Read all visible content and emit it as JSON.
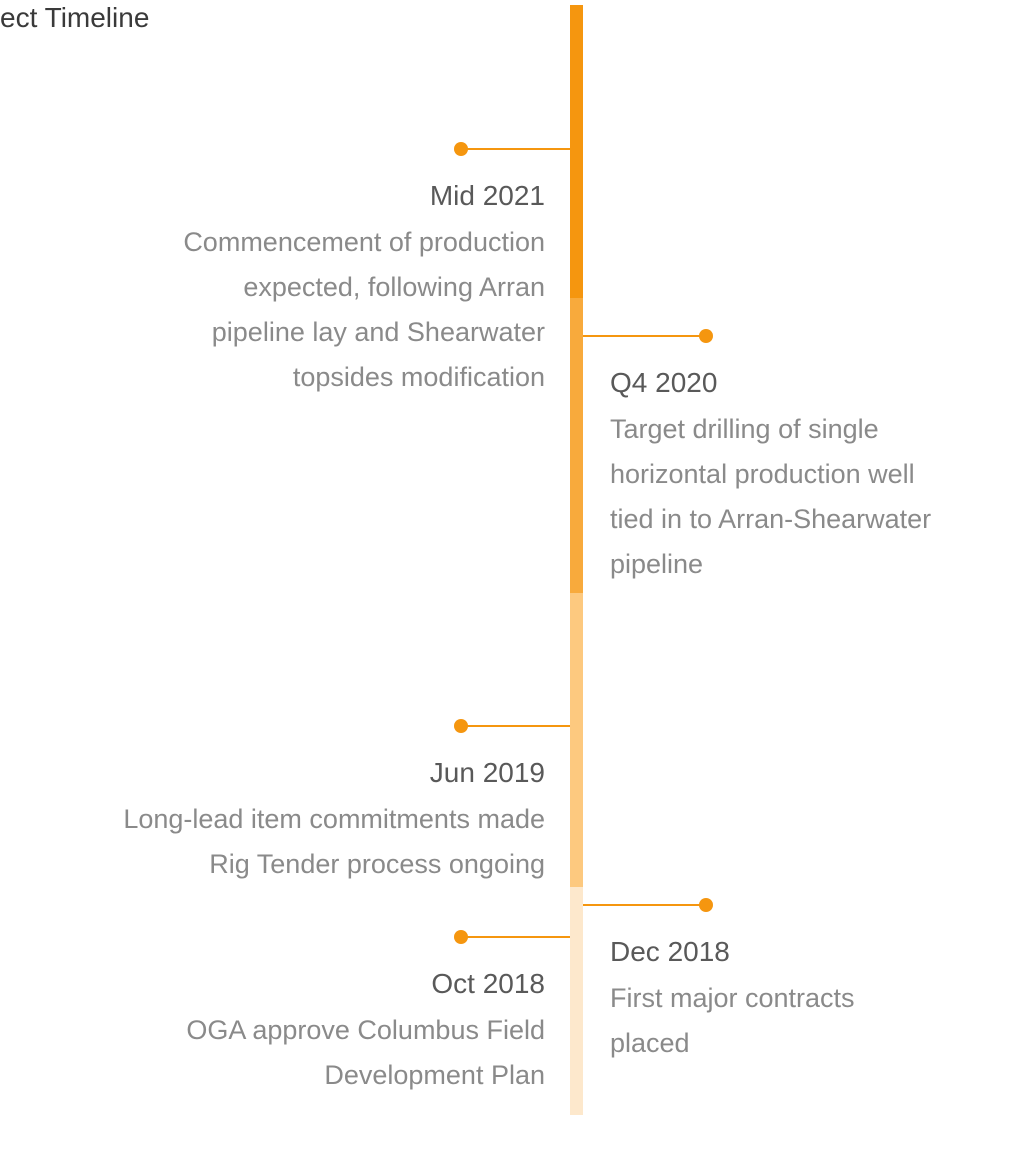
{
  "title": "ect Timeline",
  "events": [
    {
      "date": "Mid 2021",
      "lines": [
        "Commencement of production",
        "expected, following Arran",
        "pipeline lay and Shearwater",
        "topsides modification"
      ]
    },
    {
      "date": "Q4 2020",
      "lines": [
        "Target drilling of single",
        "horizontal production well",
        "tied in to Arran-Shearwater",
        "pipeline"
      ]
    },
    {
      "date": "Jun 2019",
      "lines": [
        "Long-lead item commitments made",
        "Rig Tender process ongoing"
      ]
    },
    {
      "date": "Dec 2018",
      "lines": [
        "First major contracts",
        "placed"
      ]
    },
    {
      "date": "Oct 2018",
      "lines": [
        "OGA approve Columbus Field",
        "Development Plan"
      ]
    }
  ]
}
